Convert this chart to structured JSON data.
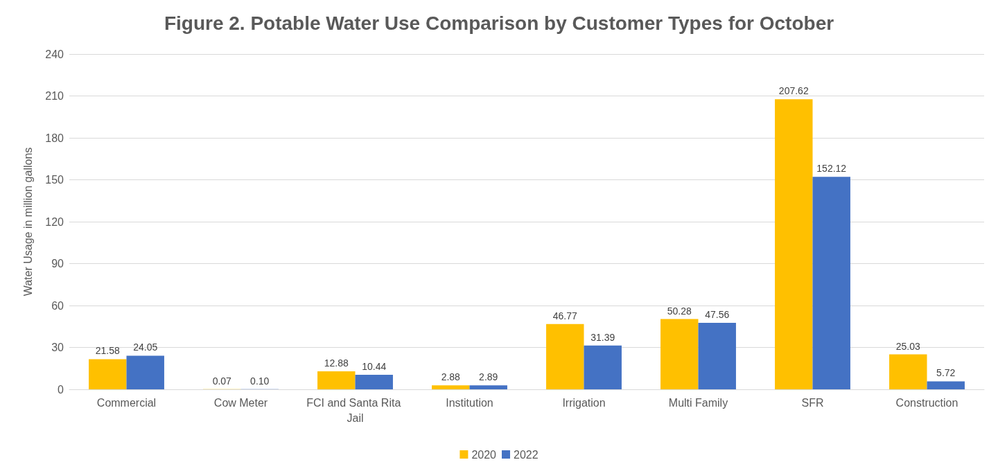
{
  "chart_data": {
    "type": "bar",
    "title": "Figure 2. Potable Water Use Comparison by Customer Types for October",
    "ylabel": "Water Usage in million gallons",
    "categories": [
      "Commercial",
      "Cow Meter",
      "FCI and Santa Rita Jail",
      "Institution",
      "Irrigation",
      "Multi Family",
      "SFR",
      "Construction"
    ],
    "series": [
      {
        "name": "2020",
        "color": "#ffc000",
        "values": [
          21.58,
          0.07,
          12.88,
          2.88,
          46.77,
          50.28,
          207.62,
          25.03
        ],
        "value_labels": [
          "21.58",
          "0.07",
          "12.88",
          "2.88",
          "46.77",
          "50.28",
          "207.62",
          "25.03"
        ]
      },
      {
        "name": "2022",
        "color": "#4472c4",
        "values": [
          24.05,
          0.1,
          10.44,
          2.89,
          31.39,
          47.56,
          152.12,
          5.72
        ],
        "value_labels": [
          "24.05",
          "0.10",
          "10.44",
          "2.89",
          "31.39",
          "47.56",
          "152.12",
          "5.72"
        ]
      }
    ],
    "ylim": [
      0,
      240
    ],
    "yticks": [
      0,
      30,
      60,
      90,
      120,
      150,
      180,
      210,
      240
    ],
    "grid": "y",
    "legend": "bottom"
  }
}
